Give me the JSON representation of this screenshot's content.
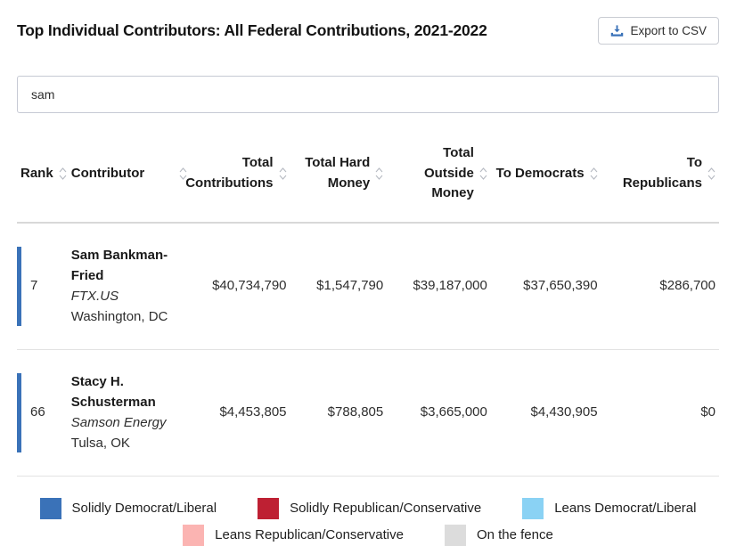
{
  "header": {
    "title": "Top Individual Contributors: All Federal Contributions, 2021-2022",
    "export_button_label": "Export to CSV"
  },
  "search": {
    "value": "sam"
  },
  "colors": {
    "accent_blue": "#3a72b8",
    "divider": "#e2e2e2",
    "sort_icon": "#b6bac2"
  },
  "table": {
    "columns": [
      {
        "key": "rank",
        "label": "Rank",
        "align": "left"
      },
      {
        "key": "contributor",
        "label": "Contributor",
        "align": "left"
      },
      {
        "key": "total_contributions",
        "label": "Total Contributions",
        "align": "right"
      },
      {
        "key": "total_hard_money",
        "label": "Total Hard Money",
        "align": "right"
      },
      {
        "key": "total_outside_money",
        "label": "Total Outside Money",
        "align": "right"
      },
      {
        "key": "to_democrats",
        "label": "To Democrats",
        "align": "right"
      },
      {
        "key": "to_republicans",
        "label": "To Republicans",
        "align": "right"
      }
    ],
    "rows": [
      {
        "rank": "7",
        "name": "Sam Bankman-Fried",
        "organization": "FTX.US",
        "location": "Washington, DC",
        "total_contributions": "$40,734,790",
        "total_hard_money": "$1,547,790",
        "total_outside_money": "$39,187,000",
        "to_democrats": "$37,650,390",
        "to_republicans": "$286,700",
        "affiliation": "Solidly Democrat/Liberal",
        "affiliation_color": "#3a72b8"
      },
      {
        "rank": "66",
        "name": "Stacy H. Schusterman",
        "organization": "Samson Energy",
        "location": "Tulsa, OK",
        "total_contributions": "$4,453,805",
        "total_hard_money": "$788,805",
        "total_outside_money": "$3,665,000",
        "to_democrats": "$4,430,905",
        "to_republicans": "$0",
        "affiliation": "Solidly Democrat/Liberal",
        "affiliation_color": "#3a72b8"
      }
    ]
  },
  "legend": {
    "items": [
      {
        "label": "Solidly Democrat/Liberal",
        "color": "#3a72b8"
      },
      {
        "label": "Solidly Republican/Conservative",
        "color": "#be2033"
      },
      {
        "label": "Leans Democrat/Liberal",
        "color": "#8ad2f4"
      },
      {
        "label": "Leans Republican/Conservative",
        "color": "#fbb4b2"
      },
      {
        "label": "On the fence",
        "color": "#dcdcdc"
      }
    ]
  }
}
